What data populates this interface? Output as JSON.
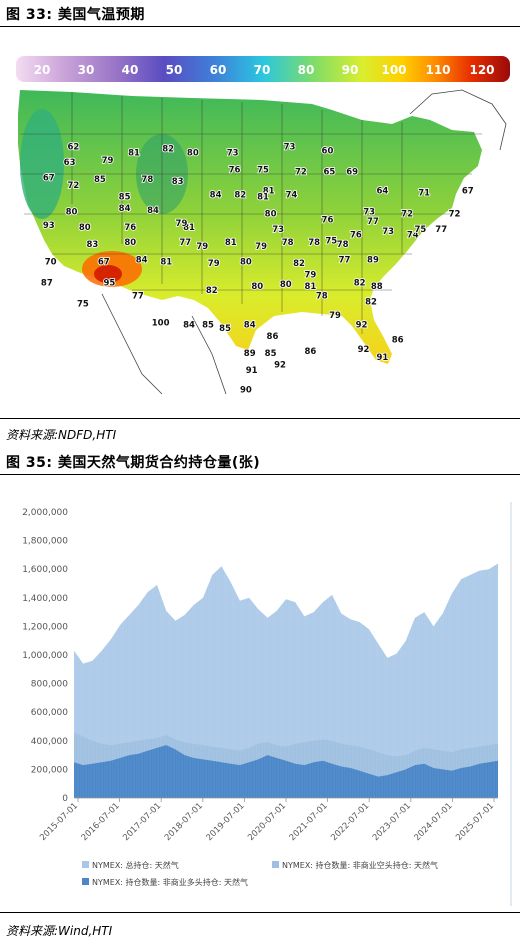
{
  "figure33": {
    "title": "图 33:  美国气温预期",
    "colorbar_ticks": [
      "20",
      "30",
      "40",
      "50",
      "60",
      "70",
      "80",
      "90",
      "100",
      "110",
      "120"
    ],
    "colorbar_colors": [
      "#f0d8f0",
      "#c9a2d8",
      "#9a76c7",
      "#6a4bb5",
      "#3f5fcf",
      "#2aa9e3",
      "#49d4c0",
      "#88e07a",
      "#d6ec3a",
      "#ffd700",
      "#ff9900",
      "#ff4400",
      "#cc1100",
      "#990000"
    ],
    "labels": [
      "62",
      "63",
      "79",
      "81",
      "82",
      "80",
      "73",
      "73",
      "60",
      "72",
      "85",
      "78",
      "83",
      "76",
      "75",
      "67",
      "72",
      "65",
      "69",
      "81",
      "85",
      "84",
      "82",
      "81",
      "74",
      "64",
      "71",
      "67",
      "80",
      "93",
      "84",
      "84",
      "73",
      "72",
      "72",
      "80",
      "80",
      "76",
      "81",
      "79",
      "73",
      "77",
      "74",
      "76",
      "75",
      "83",
      "80",
      "79",
      "79",
      "81",
      "78",
      "78",
      "78",
      "76",
      "77",
      "73",
      "75",
      "70",
      "67",
      "84",
      "81",
      "77",
      "79",
      "80",
      "82",
      "79",
      "77",
      "89",
      "87",
      "95",
      "82",
      "80",
      "80",
      "81",
      "78",
      "82",
      "82",
      "85",
      "75",
      "77",
      "100",
      "84",
      "85",
      "84",
      "86",
      "88",
      "79",
      "91",
      "89",
      "85",
      "86",
      "92",
      "90",
      "92",
      "92",
      "86",
      "91"
    ],
    "source": "资料来源:NDFD,HTI"
  },
  "figure35": {
    "title": "图 35:  美国天然气期货合约持仓量(张)",
    "source": "资料来源:Wind,HTI"
  },
  "chart_data": {
    "type": "area",
    "x_ticks": [
      "2015-07-01",
      "2016-07-01",
      "2017-07-01",
      "2018-07-01",
      "2019-07-01",
      "2020-07-01",
      "2021-07-01",
      "2022-07-01",
      "2023-07-01",
      "2024-07-01",
      "2025-07-01"
    ],
    "y_ticks": [
      "0",
      "200,000",
      "400,000",
      "600,000",
      "800,000",
      "1,000,000",
      "1,200,000",
      "1,400,000",
      "1,600,000",
      "1,800,000",
      "2,000,000"
    ],
    "ylim": [
      0,
      2000000
    ],
    "series": [
      {
        "name": "NYMEX: 总持仓: 天然气",
        "color": "#a9c7e8",
        "values": [
          1030000,
          940000,
          960000,
          1030000,
          1110000,
          1210000,
          1280000,
          1350000,
          1440000,
          1490000,
          1310000,
          1240000,
          1280000,
          1350000,
          1400000,
          1560000,
          1620000,
          1510000,
          1380000,
          1400000,
          1320000,
          1260000,
          1310000,
          1390000,
          1370000,
          1270000,
          1300000,
          1370000,
          1420000,
          1290000,
          1250000,
          1230000,
          1180000,
          1080000,
          980000,
          1010000,
          1100000,
          1260000,
          1300000,
          1200000,
          1290000,
          1430000,
          1530000,
          1560000,
          1590000,
          1600000,
          1640000
        ]
      },
      {
        "name": "NYMEX: 持仓数量: 非商业空头持仓: 天然气",
        "color": "#9fbfe0",
        "values": [
          460000,
          430000,
          400000,
          380000,
          370000,
          380000,
          390000,
          400000,
          410000,
          420000,
          440000,
          410000,
          390000,
          380000,
          370000,
          360000,
          350000,
          340000,
          330000,
          350000,
          380000,
          390000,
          370000,
          360000,
          380000,
          390000,
          400000,
          410000,
          400000,
          380000,
          370000,
          360000,
          340000,
          320000,
          300000,
          290000,
          300000,
          330000,
          350000,
          340000,
          330000,
          320000,
          340000,
          350000,
          360000,
          370000,
          380000
        ]
      },
      {
        "name": "NYMEX: 持仓数量: 非商业多头持仓: 天然气",
        "color": "#4a86c8",
        "values": [
          250000,
          230000,
          240000,
          250000,
          260000,
          280000,
          300000,
          310000,
          330000,
          350000,
          370000,
          340000,
          300000,
          280000,
          270000,
          260000,
          250000,
          240000,
          230000,
          250000,
          270000,
          300000,
          280000,
          260000,
          240000,
          230000,
          250000,
          260000,
          240000,
          220000,
          210000,
          190000,
          170000,
          150000,
          160000,
          180000,
          200000,
          230000,
          240000,
          210000,
          200000,
          190000,
          210000,
          220000,
          240000,
          250000,
          260000
        ]
      }
    ],
    "legend_position": "bottom",
    "grid": false
  }
}
